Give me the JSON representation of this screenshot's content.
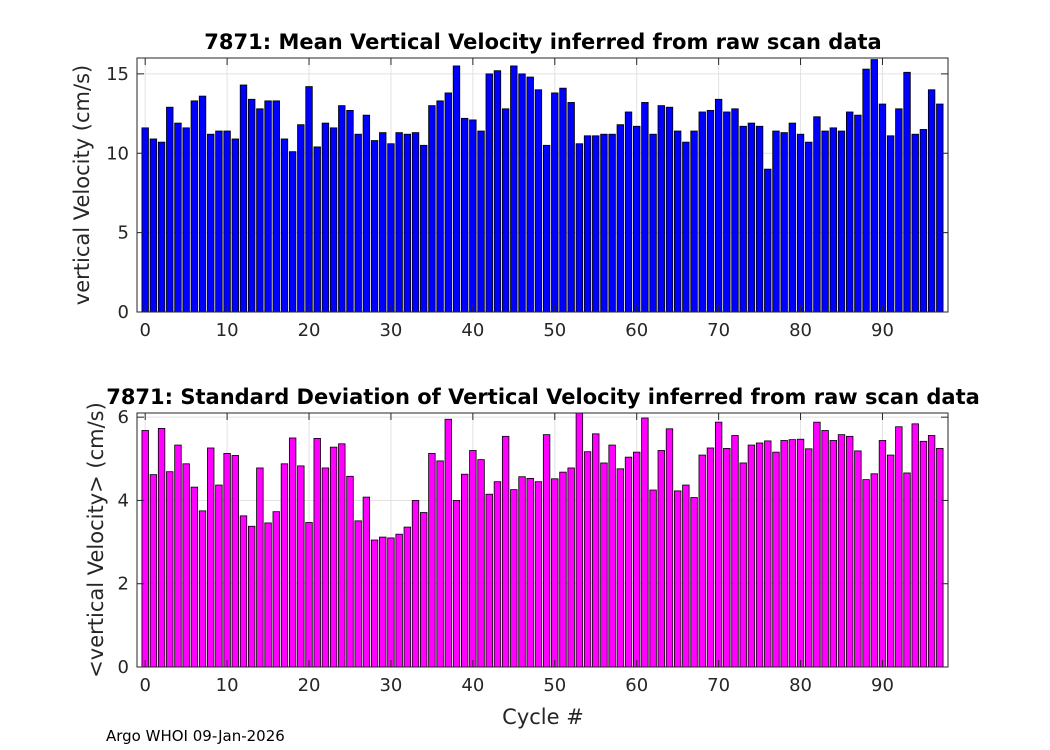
{
  "chart_data": [
    {
      "type": "bar",
      "title": "7871: Mean Vertical Velocity inferred from raw scan data",
      "xlabel": "",
      "ylabel": "vertical Velocity (cm/s)",
      "xlim": [
        -1,
        98
      ],
      "ylim": [
        0,
        16
      ],
      "xticks": [
        0,
        10,
        20,
        30,
        40,
        50,
        60,
        70,
        80,
        90
      ],
      "yticks": [
        0,
        5,
        10,
        15
      ],
      "grid": true,
      "bar_color": "#0000ff",
      "x_start": 0,
      "values": [
        11.6,
        10.9,
        10.7,
        12.9,
        11.9,
        11.6,
        13.3,
        13.6,
        11.2,
        11.4,
        11.4,
        10.9,
        14.3,
        13.4,
        12.8,
        13.3,
        13.3,
        10.9,
        10.1,
        11.8,
        14.2,
        10.4,
        11.9,
        11.6,
        13.0,
        12.7,
        11.2,
        12.4,
        10.8,
        11.3,
        10.6,
        11.3,
        11.2,
        11.3,
        10.5,
        13.0,
        13.3,
        13.8,
        15.5,
        12.2,
        12.1,
        11.4,
        15.0,
        15.2,
        12.8,
        15.5,
        15.0,
        14.8,
        14.0,
        10.5,
        13.8,
        14.1,
        13.2,
        10.6,
        11.1,
        11.1,
        11.2,
        11.2,
        11.8,
        12.6,
        11.7,
        13.2,
        11.2,
        13.0,
        12.9,
        11.4,
        10.7,
        11.4,
        12.6,
        12.7,
        13.4,
        12.6,
        12.8,
        11.7,
        11.9,
        11.7,
        9.0,
        11.4,
        11.3,
        11.9,
        11.2,
        10.7,
        12.3,
        11.4,
        11.6,
        11.4,
        12.6,
        12.4,
        15.3,
        15.9,
        13.1,
        11.1,
        12.8,
        15.1,
        11.2,
        11.5,
        14.0,
        13.1
      ]
    },
    {
      "type": "bar",
      "title": "7871: Standard Deviation of Vertical Velocity inferred from raw scan data",
      "xlabel": "Cycle #",
      "ylabel": "<vertical Velocity> (cm/s)",
      "xlim": [
        -1,
        98
      ],
      "ylim": [
        0,
        6.1
      ],
      "xticks": [
        0,
        10,
        20,
        30,
        40,
        50,
        60,
        70,
        80,
        90
      ],
      "yticks": [
        0,
        2,
        4,
        6
      ],
      "grid": true,
      "bar_color": "#ff00ff",
      "x_start": 0,
      "values": [
        5.68,
        4.62,
        5.73,
        4.69,
        5.33,
        4.88,
        4.32,
        3.75,
        5.26,
        4.37,
        5.13,
        5.08,
        3.63,
        3.38,
        4.78,
        3.46,
        3.73,
        4.88,
        5.5,
        4.83,
        3.47,
        5.49,
        4.78,
        5.28,
        5.36,
        4.58,
        3.51,
        4.08,
        3.05,
        3.12,
        3.1,
        3.19,
        3.36,
        4.0,
        3.71,
        5.13,
        4.95,
        5.95,
        4.0,
        4.63,
        5.2,
        4.98,
        4.15,
        4.45,
        5.54,
        4.26,
        4.57,
        4.53,
        4.45,
        5.58,
        4.52,
        4.68,
        4.78,
        6.1,
        5.17,
        5.6,
        4.9,
        5.33,
        4.76,
        5.04,
        5.16,
        5.98,
        4.25,
        5.2,
        5.72,
        4.23,
        4.37,
        4.07,
        5.09,
        5.26,
        5.88,
        5.25,
        5.56,
        4.9,
        5.33,
        5.38,
        5.43,
        5.16,
        5.44,
        5.46,
        5.47,
        5.24,
        5.88,
        5.68,
        5.44,
        5.58,
        5.54,
        5.19,
        4.5,
        4.64,
        5.44,
        5.09,
        5.77,
        4.66,
        5.84,
        5.42,
        5.56,
        5.25
      ]
    }
  ],
  "footer": "Argo WHOI 09-Jan-2026"
}
